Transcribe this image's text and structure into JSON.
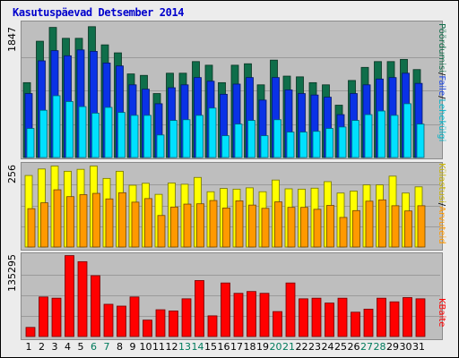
{
  "title": "Kasutuspäevad Detsember 2014",
  "colors": {
    "hits": "#0f6e4a",
    "files": "#0a32e6",
    "pages": "#00e0ff",
    "visits": "#ffff00",
    "sites": "#ff9900",
    "kbytes": "#ff0000",
    "weekday_label": "#000000",
    "weekend_label": "#007a5c"
  },
  "legend": {
    "top": [
      {
        "label": "Pöördumisi",
        "color": "#0f6e4a"
      },
      {
        "label": "Faile",
        "color": "#1a46e6"
      },
      {
        "label": "Lehekülgi",
        "color": "#00b4c8"
      }
    ],
    "middle": [
      {
        "label": "Külastusi",
        "color": "#c8b400"
      },
      {
        "label": "Arvuteid",
        "color": "#ff9900"
      }
    ],
    "bottom": [
      {
        "label": "KBaite",
        "color": "#ff0000"
      }
    ],
    "separator": "/"
  },
  "chart_data": [
    {
      "type": "bar",
      "panel": "hits-files-pages",
      "ymax_label": "1847",
      "ylim": [
        0,
        1847
      ],
      "categories": [
        "1",
        "2",
        "3",
        "4",
        "5",
        "6",
        "7",
        "8",
        "9",
        "10",
        "11",
        "12",
        "13",
        "14",
        "15",
        "16",
        "17",
        "18",
        "19",
        "20",
        "21",
        "22",
        "23",
        "24",
        "25",
        "26",
        "27",
        "28",
        "29",
        "30",
        "31"
      ],
      "weekend": [
        6,
        7,
        13,
        14,
        20,
        21,
        27,
        28
      ],
      "series": [
        {
          "name": "Pöördumisi",
          "values": [
            1030,
            1600,
            1790,
            1640,
            1640,
            1800,
            1550,
            1440,
            1150,
            1130,
            880,
            1160,
            1160,
            1320,
            1270,
            1030,
            1270,
            1290,
            1000,
            1340,
            1120,
            1110,
            1030,
            1000,
            720,
            1060,
            1240,
            1320,
            1320,
            1350,
            1210
          ]
        },
        {
          "name": "Faile",
          "values": [
            880,
            1330,
            1470,
            1400,
            1480,
            1460,
            1300,
            1260,
            1000,
            940,
            740,
            960,
            1000,
            1100,
            1050,
            870,
            1010,
            1100,
            790,
            1100,
            930,
            880,
            860,
            830,
            590,
            880,
            1000,
            1080,
            1100,
            1160,
            1020
          ]
        },
        {
          "name": "Lehekülgi",
          "values": [
            400,
            650,
            850,
            770,
            700,
            610,
            690,
            620,
            580,
            580,
            310,
            510,
            520,
            580,
            680,
            300,
            460,
            510,
            300,
            520,
            350,
            350,
            360,
            400,
            420,
            510,
            590,
            640,
            580,
            740,
            460
          ]
        }
      ]
    },
    {
      "type": "bar",
      "panel": "visits-sites",
      "ymax_label": "256",
      "ylim": [
        0,
        256
      ],
      "categories": [
        "1",
        "2",
        "3",
        "4",
        "5",
        "6",
        "7",
        "8",
        "9",
        "10",
        "11",
        "12",
        "13",
        "14",
        "15",
        "16",
        "17",
        "18",
        "19",
        "20",
        "21",
        "22",
        "23",
        "24",
        "25",
        "26",
        "27",
        "28",
        "29",
        "30",
        "31"
      ],
      "series": [
        {
          "name": "Külastusi",
          "values": [
            220,
            240,
            249,
            233,
            239,
            249,
            211,
            233,
            190,
            196,
            162,
            197,
            193,
            214,
            170,
            180,
            178,
            182,
            170,
            206,
            179,
            178,
            181,
            201,
            166,
            172,
            191,
            191,
            218,
            166,
            185
          ]
        },
        {
          "name": "Arvuteid",
          "values": [
            118,
            136,
            176,
            155,
            161,
            165,
            148,
            167,
            138,
            149,
            97,
            123,
            132,
            133,
            143,
            120,
            142,
            129,
            119,
            139,
            122,
            122,
            116,
            128,
            91,
            112,
            141,
            145,
            127,
            111,
            127
          ]
        }
      ]
    },
    {
      "type": "bar",
      "panel": "kbytes",
      "ymax_label": "135295",
      "ylim": [
        0,
        135295
      ],
      "categories": [
        "1",
        "2",
        "3",
        "4",
        "5",
        "6",
        "7",
        "8",
        "9",
        "10",
        "11",
        "12",
        "13",
        "14",
        "15",
        "16",
        "17",
        "18",
        "19",
        "20",
        "21",
        "22",
        "23",
        "24",
        "25",
        "26",
        "27",
        "28",
        "29",
        "30",
        "31"
      ],
      "series": [
        {
          "name": "KBaite",
          "values": [
            15000,
            65000,
            63000,
            133000,
            123000,
            100000,
            53000,
            50000,
            65000,
            27000,
            44000,
            42000,
            62000,
            92000,
            34000,
            88000,
            71000,
            74000,
            71000,
            41000,
            88000,
            62000,
            63000,
            55000,
            63000,
            40000,
            45000,
            63000,
            57000,
            64000,
            62000
          ]
        }
      ]
    }
  ]
}
